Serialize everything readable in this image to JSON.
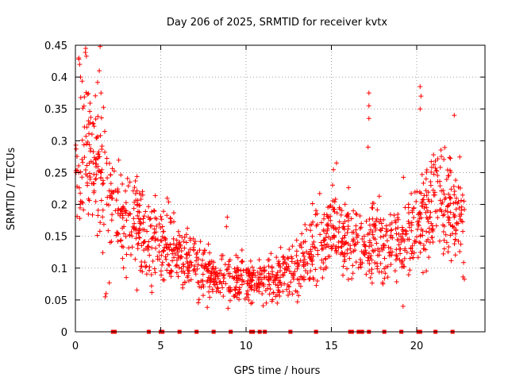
{
  "chart_data": {
    "type": "scatter",
    "title": "Day 206 of 2025, SRMTID for receiver kvtx",
    "xlabel": "GPS time / hours",
    "ylabel": "SRMTID / TECUs",
    "xlim": [
      0,
      24
    ],
    "ylim": [
      0,
      0.45
    ],
    "x_ticks": [
      0,
      5,
      10,
      15,
      20
    ],
    "x_tick_labels": [
      "0",
      "5",
      "10",
      "15",
      "20"
    ],
    "y_ticks": [
      0,
      0.05,
      0.1,
      0.15,
      0.2,
      0.25,
      0.3,
      0.35,
      0.4,
      0.45
    ],
    "y_tick_labels": [
      "0",
      "0.05",
      "0.1",
      "0.15",
      "0.2",
      "0.25",
      "0.3",
      "0.35",
      "0.4",
      "0.45"
    ],
    "grid": true,
    "marker": "+",
    "series_color": "#ff0000",
    "trend": [
      {
        "x": 0.0,
        "y": 0.27
      },
      {
        "x": 0.5,
        "y": 0.3
      },
      {
        "x": 1.0,
        "y": 0.29
      },
      {
        "x": 1.5,
        "y": 0.25
      },
      {
        "x": 2.0,
        "y": 0.21
      },
      {
        "x": 2.5,
        "y": 0.19
      },
      {
        "x": 3.0,
        "y": 0.18
      },
      {
        "x": 3.5,
        "y": 0.17
      },
      {
        "x": 4.0,
        "y": 0.155
      },
      {
        "x": 5.0,
        "y": 0.14
      },
      {
        "x": 6.0,
        "y": 0.125
      },
      {
        "x": 7.0,
        "y": 0.105
      },
      {
        "x": 8.0,
        "y": 0.085
      },
      {
        "x": 9.0,
        "y": 0.08
      },
      {
        "x": 10.0,
        "y": 0.078
      },
      {
        "x": 11.0,
        "y": 0.082
      },
      {
        "x": 12.0,
        "y": 0.09
      },
      {
        "x": 13.0,
        "y": 0.1
      },
      {
        "x": 14.0,
        "y": 0.125
      },
      {
        "x": 15.0,
        "y": 0.16
      },
      {
        "x": 16.0,
        "y": 0.14
      },
      {
        "x": 17.0,
        "y": 0.13
      },
      {
        "x": 18.0,
        "y": 0.14
      },
      {
        "x": 19.0,
        "y": 0.14
      },
      {
        "x": 20.0,
        "y": 0.17
      },
      {
        "x": 21.0,
        "y": 0.21
      },
      {
        "x": 22.0,
        "y": 0.19
      },
      {
        "x": 22.8,
        "y": 0.18
      }
    ],
    "notable_points": [
      {
        "x": 1.45,
        "y": 0.448
      },
      {
        "x": 0.2,
        "y": 0.43
      },
      {
        "x": 0.25,
        "y": 0.42
      },
      {
        "x": 1.4,
        "y": 0.41
      },
      {
        "x": 0.3,
        "y": 0.4
      },
      {
        "x": 1.5,
        "y": 0.375
      },
      {
        "x": 17.2,
        "y": 0.375
      },
      {
        "x": 17.2,
        "y": 0.355
      },
      {
        "x": 17.2,
        "y": 0.335
      },
      {
        "x": 17.15,
        "y": 0.29
      },
      {
        "x": 20.2,
        "y": 0.385
      },
      {
        "x": 20.25,
        "y": 0.37
      },
      {
        "x": 20.2,
        "y": 0.35
      },
      {
        "x": 1.8,
        "y": 0.06
      },
      {
        "x": 1.75,
        "y": 0.055
      },
      {
        "x": 19.2,
        "y": 0.04
      },
      {
        "x": 8.9,
        "y": 0.18
      },
      {
        "x": 8.85,
        "y": 0.165
      },
      {
        "x": 15.3,
        "y": 0.265
      },
      {
        "x": 22.2,
        "y": 0.34
      }
    ],
    "zero_points_x": [
      2.2,
      2.3,
      4.3,
      5.0,
      5.1,
      6.1,
      7.1,
      8.1,
      9.1,
      10.3,
      10.4,
      10.8,
      11.1,
      12.6,
      14.1,
      16.1,
      16.2,
      16.6,
      16.8,
      17.2,
      18.1,
      19.1,
      20.1,
      20.2,
      21.1,
      22.1
    ]
  }
}
